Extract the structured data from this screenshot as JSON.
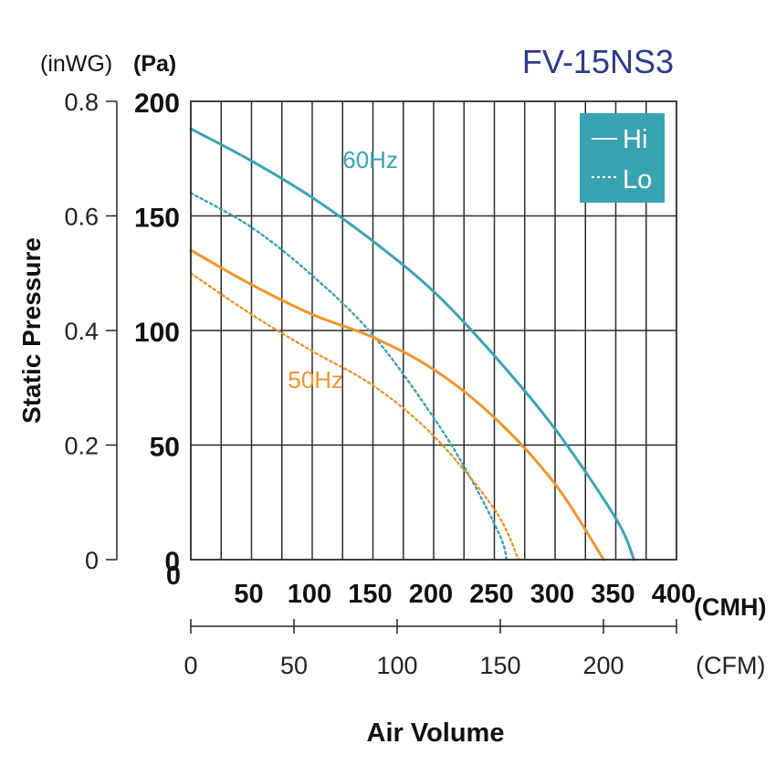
{
  "chart_data": {
    "type": "line",
    "title": "FV-15NS3",
    "xlabel": "Air Volume",
    "ylabel": "Static Pressure",
    "x_unit_primary": "(CMH)",
    "x_unit_secondary": "(CFM)",
    "y_unit_primary": "(Pa)",
    "y_unit_secondary": "(inWG)",
    "xlim": [
      0,
      400
    ],
    "ylim": [
      0,
      200
    ],
    "cfm_lim": [
      0,
      235.4
    ],
    "grid": true,
    "x_ticks": [
      {
        "value": 50,
        "label": "50"
      },
      {
        "value": 100,
        "label": "100"
      },
      {
        "value": 150,
        "label": "150"
      },
      {
        "value": 200,
        "label": "200"
      },
      {
        "value": 250,
        "label": "250"
      },
      {
        "value": 300,
        "label": "300"
      },
      {
        "value": 350,
        "label": "350"
      },
      {
        "value": 400,
        "label": "400"
      }
    ],
    "y_ticks": [
      {
        "value": 0,
        "label": "0"
      },
      {
        "value": 50,
        "label": "50"
      },
      {
        "value": 100,
        "label": "100"
      },
      {
        "value": 150,
        "label": "150"
      },
      {
        "value": 200,
        "label": "200"
      }
    ],
    "inwg_ticks": [
      {
        "value": 0,
        "label": "0"
      },
      {
        "value": 0.2,
        "label": "0.2"
      },
      {
        "value": 0.4,
        "label": "0.4"
      },
      {
        "value": 0.6,
        "label": "0.6"
      },
      {
        "value": 0.8,
        "label": "0.8"
      }
    ],
    "cfm_ticks": [
      {
        "value": 0,
        "label": "0"
      },
      {
        "value": 50,
        "label": "50"
      },
      {
        "value": 100,
        "label": "100"
      },
      {
        "value": 150,
        "label": "150"
      },
      {
        "value": 200,
        "label": "200"
      }
    ],
    "legend": {
      "position": "top-right",
      "entries": [
        {
          "label": "Hi",
          "style": "solid"
        },
        {
          "label": "Lo",
          "style": "dotted"
        }
      ],
      "color": "#3aa3b3"
    },
    "annotations": [
      {
        "text": "60Hz",
        "x": 125,
        "y": 171,
        "color": "#3aa3b3"
      },
      {
        "text": "50Hz",
        "x": 80,
        "y": 75,
        "color": "#f0952d"
      }
    ],
    "series": [
      {
        "name": "60Hz Hi",
        "color": "#3aa3b3",
        "style": "solid",
        "x": [
          0,
          50,
          100,
          150,
          200,
          250,
          300,
          350,
          365
        ],
        "y": [
          188,
          174,
          158,
          139,
          117,
          89,
          57,
          18,
          0
        ]
      },
      {
        "name": "60Hz Lo",
        "color": "#3aa3b3",
        "style": "dotted",
        "x": [
          0,
          50,
          100,
          150,
          200,
          230,
          255,
          260
        ],
        "y": [
          160,
          145,
          124,
          98,
          62,
          36,
          10,
          0
        ]
      },
      {
        "name": "50Hz Hi",
        "color": "#f0952d",
        "style": "solid",
        "x": [
          0,
          50,
          100,
          150,
          200,
          250,
          300,
          340
        ],
        "y": [
          135,
          120,
          107,
          97,
          83,
          62,
          33,
          0
        ]
      },
      {
        "name": "50Hz Lo",
        "color": "#f0952d",
        "style": "dotted",
        "x": [
          0,
          50,
          100,
          150,
          200,
          250,
          270
        ],
        "y": [
          125,
          107,
          91,
          76,
          54,
          22,
          0
        ]
      }
    ]
  }
}
